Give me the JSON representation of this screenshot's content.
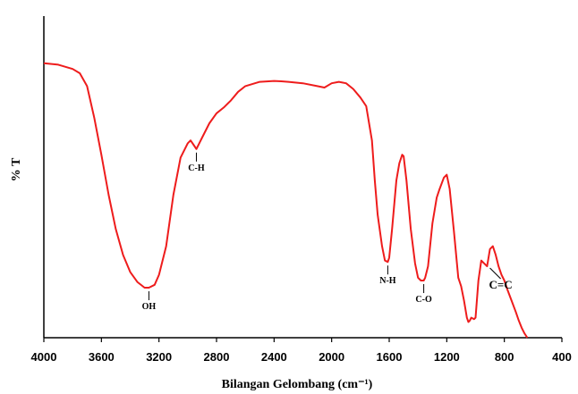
{
  "chart_data": {
    "type": "line",
    "title": "",
    "xlabel": "Bilangan Gelombang (cm⁻¹)",
    "ylabel": "% T",
    "xlim": [
      4000,
      400
    ],
    "ylim": [
      0,
      100
    ],
    "x_ticks": [
      4000,
      3600,
      3200,
      2800,
      2400,
      2000,
      1600,
      1200,
      800,
      400
    ],
    "x_tick_labels": [
      "4000",
      "3600",
      "3200",
      "2800",
      "2400",
      "2000",
      "1600",
      "1200",
      "800",
      "400"
    ],
    "grid": false,
    "line_color": "#ee1c1c",
    "series": [
      {
        "x": [
          4000,
          3900,
          3800,
          3750,
          3700,
          3650,
          3600,
          3550,
          3500,
          3450,
          3400,
          3350,
          3300,
          3270,
          3230,
          3200,
          3150,
          3100,
          3050,
          3000,
          2980,
          2960,
          2940,
          2920,
          2900,
          2850,
          2800,
          2750,
          2700,
          2650,
          2600,
          2500,
          2400,
          2350,
          2300,
          2200,
          2100,
          2050,
          2000,
          1950,
          1900,
          1850,
          1800,
          1760,
          1720,
          1700,
          1680,
          1650,
          1630,
          1610,
          1600,
          1580,
          1550,
          1530,
          1510,
          1500,
          1480,
          1450,
          1420,
          1400,
          1380,
          1360,
          1350,
          1330,
          1300,
          1270,
          1250,
          1220,
          1200,
          1180,
          1150,
          1120,
          1100,
          1080,
          1060,
          1050,
          1040,
          1030,
          1010,
          1000,
          980,
          960,
          940,
          920,
          900,
          880,
          860,
          840,
          820,
          800,
          780,
          750,
          720,
          700,
          680,
          660,
          640
        ],
        "y": [
          91,
          90.5,
          89,
          87.5,
          83,
          72,
          59,
          45,
          33,
          24,
          18,
          14.5,
          12.5,
          12.5,
          13.5,
          17,
          27,
          45,
          58,
          63,
          64,
          62.5,
          61,
          63,
          65,
          70,
          73.5,
          75.5,
          78,
          81,
          83,
          84.5,
          84.8,
          84.7,
          84.5,
          84,
          83,
          82.5,
          84,
          84.5,
          84,
          82,
          79,
          76,
          64,
          50,
          38,
          27,
          22,
          21.5,
          23,
          33,
          50,
          56,
          59,
          58.5,
          50,
          33,
          21,
          16,
          15,
          15,
          16,
          20,
          35,
          44,
          47,
          51,
          52,
          47,
          32,
          16,
          13,
          8,
          2,
          0.5,
          1,
          2,
          1.5,
          2,
          15,
          22,
          21,
          20,
          26,
          27,
          24,
          20,
          17,
          15,
          12,
          8,
          4,
          1,
          -1.5,
          -3.5,
          -5
        ]
      }
    ],
    "annotations": [
      {
        "label": "OH",
        "x": 3270,
        "y": 12.5
      },
      {
        "label": "C-H",
        "x": 2940,
        "y": 61
      },
      {
        "label": "N-H",
        "x": 1610,
        "y": 21.5
      },
      {
        "label": "C-O",
        "x": 1360,
        "y": 15
      },
      {
        "label": "C=C",
        "x": 900,
        "y": 20
      }
    ]
  }
}
